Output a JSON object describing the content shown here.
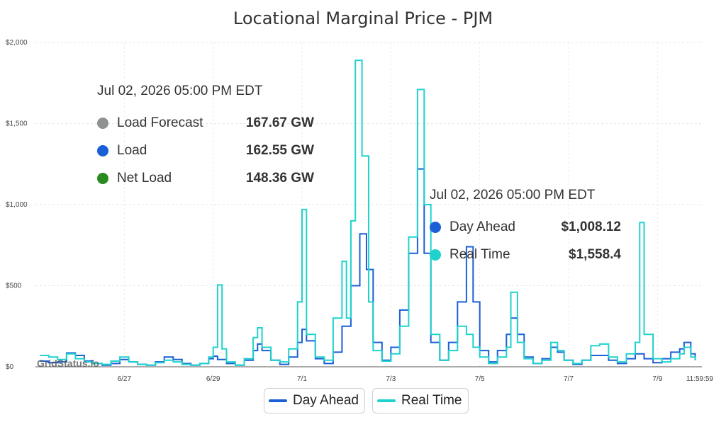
{
  "chart_data": {
    "type": "line",
    "title": "Locational Marginal Price - PJM",
    "watermark": "GridStatus.io",
    "y_ticks": [
      {
        "value": 0,
        "label": "$0"
      },
      {
        "value": 500,
        "label": "$500"
      },
      {
        "value": 1000,
        "label": "$1,000"
      },
      {
        "value": 1500,
        "label": "$1,500"
      },
      {
        "value": 2000,
        "label": "$2,000"
      }
    ],
    "ylim": [
      0,
      2000
    ],
    "xlim": [
      0,
      13
    ],
    "x_ticks": [
      {
        "value": 1,
        "label": "6/27"
      },
      {
        "value": 3,
        "label": "6/29"
      },
      {
        "value": 5,
        "label": "7/1"
      },
      {
        "value": 7,
        "label": "7/3"
      },
      {
        "value": 9,
        "label": "7/5"
      },
      {
        "value": 11,
        "label": "7/7"
      },
      {
        "value": 13,
        "label": "7/9"
      },
      {
        "value": 14,
        "label": "11:59:59"
      }
    ],
    "grid": true,
    "legend_position": "bottom-center",
    "series": [
      {
        "name": "Day Ahead",
        "color": "#1a5fd6",
        "points": [
          [
            -0.9,
            35
          ],
          [
            -0.7,
            25
          ],
          [
            -0.5,
            30
          ],
          [
            -0.3,
            85
          ],
          [
            -0.1,
            70
          ],
          [
            0.1,
            35
          ],
          [
            0.3,
            20
          ],
          [
            0.5,
            10
          ],
          [
            0.7,
            20
          ],
          [
            0.9,
            45
          ],
          [
            1.1,
            30
          ],
          [
            1.3,
            15
          ],
          [
            1.5,
            10
          ],
          [
            1.7,
            30
          ],
          [
            1.9,
            60
          ],
          [
            2.1,
            45
          ],
          [
            2.3,
            20
          ],
          [
            2.5,
            10
          ],
          [
            2.7,
            20
          ],
          [
            2.9,
            50
          ],
          [
            3.0,
            65
          ],
          [
            3.1,
            45
          ],
          [
            3.3,
            20
          ],
          [
            3.5,
            10
          ],
          [
            3.7,
            40
          ],
          [
            3.9,
            100
          ],
          [
            4.0,
            140
          ],
          [
            4.1,
            100
          ],
          [
            4.3,
            40
          ],
          [
            4.5,
            15
          ],
          [
            4.7,
            60
          ],
          [
            4.9,
            150
          ],
          [
            5.0,
            230
          ],
          [
            5.1,
            160
          ],
          [
            5.3,
            50
          ],
          [
            5.5,
            20
          ],
          [
            5.7,
            90
          ],
          [
            5.9,
            250
          ],
          [
            6.1,
            500
          ],
          [
            6.3,
            820
          ],
          [
            6.45,
            600
          ],
          [
            6.6,
            150
          ],
          [
            6.8,
            40
          ],
          [
            7.0,
            120
          ],
          [
            7.2,
            350
          ],
          [
            7.4,
            700
          ],
          [
            7.6,
            1220
          ],
          [
            7.75,
            700
          ],
          [
            7.9,
            150
          ],
          [
            8.1,
            40
          ],
          [
            8.3,
            150
          ],
          [
            8.5,
            400
          ],
          [
            8.7,
            740
          ],
          [
            8.85,
            400
          ],
          [
            9.0,
            100
          ],
          [
            9.2,
            30
          ],
          [
            9.4,
            100
          ],
          [
            9.6,
            200
          ],
          [
            9.7,
            300
          ],
          [
            9.85,
            200
          ],
          [
            10.0,
            60
          ],
          [
            10.2,
            20
          ],
          [
            10.4,
            50
          ],
          [
            10.6,
            120
          ],
          [
            10.75,
            90
          ],
          [
            10.9,
            40
          ],
          [
            11.1,
            15
          ],
          [
            11.3,
            40
          ],
          [
            11.5,
            70
          ],
          [
            11.7,
            70
          ],
          [
            11.9,
            40
          ],
          [
            12.1,
            20
          ],
          [
            12.3,
            50
          ],
          [
            12.5,
            80
          ],
          [
            12.7,
            50
          ],
          [
            12.9,
            25
          ],
          [
            13.1,
            50
          ],
          [
            13.3,
            90
          ],
          [
            13.5,
            110
          ],
          [
            13.6,
            150
          ],
          [
            13.75,
            80
          ],
          [
            13.85,
            40
          ]
        ]
      },
      {
        "name": "Real Time",
        "color": "#1fd2cd",
        "points": [
          [
            -0.9,
            70
          ],
          [
            -0.7,
            60
          ],
          [
            -0.5,
            45
          ],
          [
            -0.3,
            80
          ],
          [
            -0.1,
            50
          ],
          [
            0.1,
            30
          ],
          [
            0.3,
            20
          ],
          [
            0.5,
            15
          ],
          [
            0.7,
            35
          ],
          [
            0.9,
            60
          ],
          [
            1.1,
            30
          ],
          [
            1.3,
            15
          ],
          [
            1.5,
            10
          ],
          [
            1.7,
            25
          ],
          [
            1.9,
            40
          ],
          [
            2.1,
            30
          ],
          [
            2.3,
            15
          ],
          [
            2.5,
            10
          ],
          [
            2.7,
            20
          ],
          [
            2.9,
            60
          ],
          [
            3.0,
            120
          ],
          [
            3.1,
            505
          ],
          [
            3.2,
            110
          ],
          [
            3.3,
            30
          ],
          [
            3.5,
            10
          ],
          [
            3.7,
            50
          ],
          [
            3.9,
            180
          ],
          [
            4.0,
            240
          ],
          [
            4.1,
            120
          ],
          [
            4.3,
            40
          ],
          [
            4.5,
            30
          ],
          [
            4.7,
            110
          ],
          [
            4.9,
            400
          ],
          [
            5.0,
            970
          ],
          [
            5.1,
            200
          ],
          [
            5.3,
            60
          ],
          [
            5.5,
            40
          ],
          [
            5.7,
            300
          ],
          [
            5.9,
            650
          ],
          [
            6.0,
            300
          ],
          [
            6.1,
            900
          ],
          [
            6.2,
            1890
          ],
          [
            6.35,
            1300
          ],
          [
            6.5,
            400
          ],
          [
            6.6,
            100
          ],
          [
            6.8,
            35
          ],
          [
            7.0,
            80
          ],
          [
            7.2,
            250
          ],
          [
            7.4,
            800
          ],
          [
            7.6,
            1710
          ],
          [
            7.75,
            1000
          ],
          [
            7.9,
            200
          ],
          [
            8.1,
            40
          ],
          [
            8.3,
            100
          ],
          [
            8.5,
            250
          ],
          [
            8.7,
            200
          ],
          [
            8.85,
            120
          ],
          [
            9.0,
            60
          ],
          [
            9.2,
            20
          ],
          [
            9.4,
            60
          ],
          [
            9.6,
            120
          ],
          [
            9.7,
            460
          ],
          [
            9.85,
            150
          ],
          [
            10.0,
            50
          ],
          [
            10.2,
            20
          ],
          [
            10.4,
            40
          ],
          [
            10.6,
            150
          ],
          [
            10.75,
            100
          ],
          [
            10.9,
            40
          ],
          [
            11.1,
            20
          ],
          [
            11.3,
            40
          ],
          [
            11.5,
            130
          ],
          [
            11.7,
            140
          ],
          [
            11.9,
            60
          ],
          [
            12.1,
            30
          ],
          [
            12.3,
            80
          ],
          [
            12.5,
            150
          ],
          [
            12.6,
            890
          ],
          [
            12.7,
            200
          ],
          [
            12.9,
            50
          ],
          [
            13.1,
            30
          ],
          [
            13.3,
            50
          ],
          [
            13.5,
            80
          ],
          [
            13.6,
            120
          ],
          [
            13.75,
            60
          ],
          [
            13.85,
            40
          ]
        ]
      }
    ]
  },
  "tooltip_load": {
    "timestamp": "Jul 02, 2026 05:00 PM EDT",
    "rows": [
      {
        "label": "Load Forecast",
        "value": "167.67 GW",
        "color": "#8e9190"
      },
      {
        "label": "Load",
        "value": "162.55 GW",
        "color": "#1a5fd6"
      },
      {
        "label": "Net Load",
        "value": "148.36 GW",
        "color": "#2b8a1f"
      }
    ]
  },
  "tooltip_price": {
    "timestamp": "Jul 02, 2026 05:00 PM EDT",
    "rows": [
      {
        "label": "Day Ahead",
        "value": "$1,008.12",
        "color": "#1a5fd6"
      },
      {
        "label": "Real Time",
        "value": "$1,558.4",
        "color": "#1fd2cd"
      }
    ]
  },
  "legend": {
    "items": [
      {
        "label": "Day Ahead",
        "color": "#1a5fd6"
      },
      {
        "label": "Real Time",
        "color": "#1fd2cd"
      }
    ]
  }
}
